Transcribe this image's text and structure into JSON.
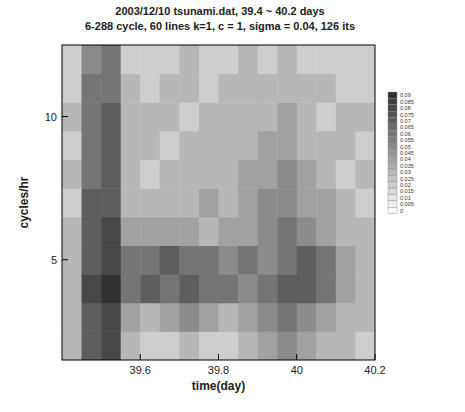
{
  "chart_data": {
    "type": "heatmap",
    "title": "2003/12/10 tsunami.dat, 39.4 ~ 40.2 days",
    "subtitle": "6-288 cycle, 60 lines k=1, c = 1, sigma = 0.04, 126 its",
    "xlabel": "time(day)",
    "ylabel": "cycles/hr",
    "xlim": [
      39.4,
      40.2
    ],
    "ylim": [
      1.5,
      12.5
    ],
    "xticks": [
      39.6,
      39.8,
      40,
      40.2
    ],
    "yticks": [
      5,
      10
    ],
    "x_edges": [
      39.4,
      39.45,
      39.5,
      39.55,
      39.6,
      39.65,
      39.7,
      39.75,
      39.8,
      39.85,
      39.9,
      39.95,
      40,
      40.05,
      40.1,
      40.15,
      40.2
    ],
    "y_edges": [
      1.5,
      2.5,
      3.5,
      4.5,
      5.5,
      6.5,
      7.5,
      8.5,
      9.5,
      10.5,
      11.5,
      12.5
    ],
    "cells": [
      [
        0.03,
        0.07,
        0.08,
        0.03,
        0.02,
        0.02,
        0.03,
        0.02,
        0.02,
        0.03,
        0.04,
        0.05,
        0.04,
        0.03,
        0.03,
        0.02
      ],
      [
        0.03,
        0.07,
        0.08,
        0.04,
        0.03,
        0.04,
        0.05,
        0.04,
        0.03,
        0.04,
        0.05,
        0.06,
        0.05,
        0.04,
        0.03,
        0.03
      ],
      [
        0.03,
        0.08,
        0.09,
        0.06,
        0.07,
        0.06,
        0.07,
        0.06,
        0.06,
        0.05,
        0.06,
        0.07,
        0.07,
        0.06,
        0.04,
        0.03
      ],
      [
        0.03,
        0.07,
        0.08,
        0.06,
        0.06,
        0.07,
        0.06,
        0.06,
        0.05,
        0.06,
        0.05,
        0.06,
        0.07,
        0.06,
        0.04,
        0.03
      ],
      [
        0.03,
        0.07,
        0.08,
        0.04,
        0.04,
        0.04,
        0.04,
        0.03,
        0.04,
        0.04,
        0.05,
        0.06,
        0.05,
        0.04,
        0.03,
        0.03
      ],
      [
        0.02,
        0.07,
        0.07,
        0.03,
        0.03,
        0.03,
        0.03,
        0.04,
        0.03,
        0.04,
        0.05,
        0.05,
        0.04,
        0.04,
        0.03,
        0.02
      ],
      [
        0.03,
        0.06,
        0.07,
        0.03,
        0.02,
        0.03,
        0.03,
        0.03,
        0.03,
        0.04,
        0.04,
        0.05,
        0.04,
        0.03,
        0.02,
        0.03
      ],
      [
        0.02,
        0.06,
        0.07,
        0.03,
        0.03,
        0.02,
        0.03,
        0.03,
        0.03,
        0.03,
        0.04,
        0.04,
        0.03,
        0.03,
        0.03,
        0.02
      ],
      [
        0.03,
        0.06,
        0.07,
        0.03,
        0.03,
        0.03,
        0.02,
        0.03,
        0.03,
        0.03,
        0.03,
        0.04,
        0.03,
        0.02,
        0.03,
        0.03
      ],
      [
        0.02,
        0.06,
        0.06,
        0.03,
        0.02,
        0.03,
        0.03,
        0.02,
        0.03,
        0.03,
        0.03,
        0.03,
        0.03,
        0.03,
        0.02,
        0.02
      ],
      [
        0.02,
        0.05,
        0.06,
        0.02,
        0.02,
        0.02,
        0.03,
        0.02,
        0.02,
        0.03,
        0.02,
        0.03,
        0.02,
        0.02,
        0.02,
        0.02
      ]
    ],
    "colorbar_range": [
      0,
      0.09
    ],
    "colorbar_ticks": [
      0.09,
      0.085,
      0.08,
      0.075,
      0.07,
      0.065,
      0.06,
      0.055,
      0.05,
      0.045,
      0.04,
      0.035,
      0.03,
      0.025,
      0.02,
      0.015,
      0.01,
      0.005,
      0
    ]
  }
}
